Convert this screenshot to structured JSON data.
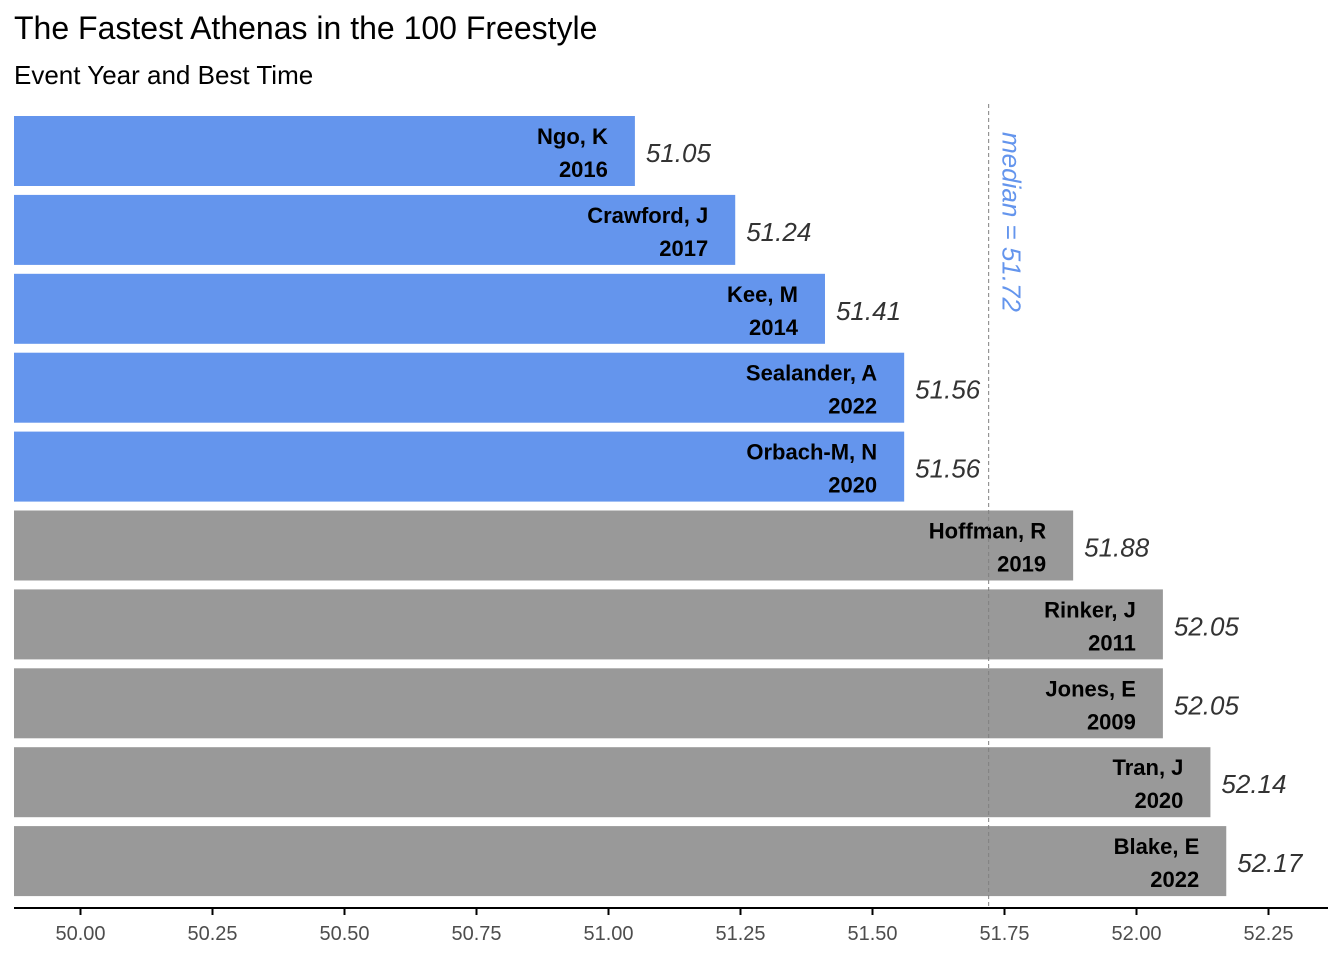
{
  "title": "The Fastest Athenas in the 100 Freestyle",
  "subtitle": "Event Year and Best Time",
  "colors": {
    "highlight": "#6495ED",
    "other": "#999999",
    "median_line": "#808080",
    "median_text": "#6495ED",
    "axis": "#000000"
  },
  "chart_data": {
    "type": "bar",
    "orientation": "horizontal",
    "title": "The Fastest Athenas in the 100 Freestyle",
    "subtitle": "Event Year and Best Time",
    "xlim": [
      49.875,
      52.36
    ],
    "x_ticks": [
      50.0,
      50.25,
      50.5,
      50.75,
      51.0,
      51.25,
      51.5,
      51.75,
      52.0,
      52.25
    ],
    "x_tick_labels": [
      "50.00",
      "50.25",
      "50.50",
      "50.75",
      "51.00",
      "51.25",
      "51.50",
      "51.75",
      "52.00",
      "52.25"
    ],
    "grid": false,
    "median": 51.72,
    "median_label": "median =  51.72",
    "bars": [
      {
        "name": "Ngo, K",
        "year": "2016",
        "value": 51.05,
        "value_label": "51.05",
        "group": "highlight"
      },
      {
        "name": "Crawford, J",
        "year": "2017",
        "value": 51.24,
        "value_label": "51.24",
        "group": "highlight"
      },
      {
        "name": "Kee, M",
        "year": "2014",
        "value": 51.41,
        "value_label": "51.41",
        "group": "highlight"
      },
      {
        "name": "Sealander, A",
        "year": "2022",
        "value": 51.56,
        "value_label": "51.56",
        "group": "highlight"
      },
      {
        "name": "Orbach-M, N",
        "year": "2020",
        "value": 51.56,
        "value_label": "51.56",
        "group": "highlight"
      },
      {
        "name": "Hoffman, R",
        "year": "2019",
        "value": 51.88,
        "value_label": "51.88",
        "group": "other"
      },
      {
        "name": "Rinker, J",
        "year": "2011",
        "value": 52.05,
        "value_label": "52.05",
        "group": "other"
      },
      {
        "name": "Jones, E",
        "year": "2009",
        "value": 52.05,
        "value_label": "52.05",
        "group": "other"
      },
      {
        "name": "Tran, J",
        "year": "2020",
        "value": 52.14,
        "value_label": "52.14",
        "group": "other"
      },
      {
        "name": "Blake, E",
        "year": "2022",
        "value": 52.17,
        "value_label": "52.17",
        "group": "other"
      }
    ]
  }
}
